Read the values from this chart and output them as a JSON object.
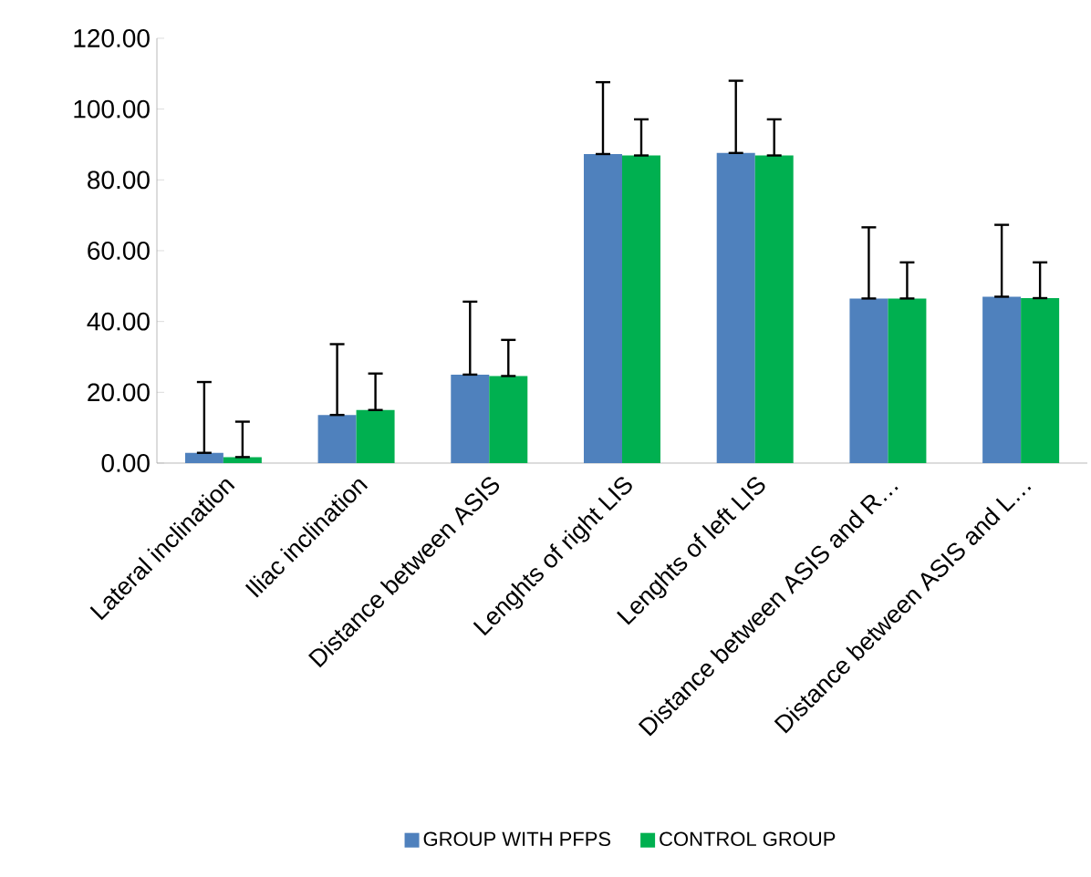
{
  "chart_data": {
    "type": "bar",
    "categories": [
      "Lateral inclination",
      "Iliac inclination",
      "Distance between ASIS",
      "Lenghts of right LIS",
      "Lenghts of left LIS",
      "Distance between ASIS and R…",
      "Distance between ASIS and L…"
    ],
    "series": [
      {
        "name": "GROUP WITH PFPS",
        "color": "#4f81bd",
        "values": [
          2.9,
          13.6,
          25.0,
          87.3,
          87.6,
          46.5,
          47.0
        ],
        "errors": [
          [
            2.9,
            22.9
          ],
          [
            13.6,
            33.6
          ],
          [
            25.0,
            45.6
          ],
          [
            87.3,
            107.6
          ],
          [
            87.6,
            108.0
          ],
          [
            46.5,
            66.6
          ],
          [
            47.0,
            67.3
          ]
        ]
      },
      {
        "name": "CONTROL GROUP",
        "color": "#00b050",
        "values": [
          1.7,
          15.0,
          24.6,
          86.9,
          86.9,
          46.5,
          46.6
        ],
        "errors": [
          [
            1.7,
            11.7
          ],
          [
            15.0,
            25.3
          ],
          [
            24.6,
            34.8
          ],
          [
            86.9,
            97.1
          ],
          [
            86.9,
            97.1
          ],
          [
            46.5,
            56.7
          ],
          [
            46.6,
            56.7
          ]
        ]
      }
    ],
    "ylim": [
      0,
      120
    ],
    "yticks": [
      {
        "value": 0,
        "label": "0.00"
      },
      {
        "value": 20,
        "label": "20.00"
      },
      {
        "value": 40,
        "label": "40.00"
      },
      {
        "value": 60,
        "label": "60.00"
      },
      {
        "value": 80,
        "label": "80.00"
      },
      {
        "value": 100,
        "label": "100.00"
      },
      {
        "value": 120,
        "label": "120.00"
      }
    ],
    "grid": false,
    "legend": "bottom"
  }
}
